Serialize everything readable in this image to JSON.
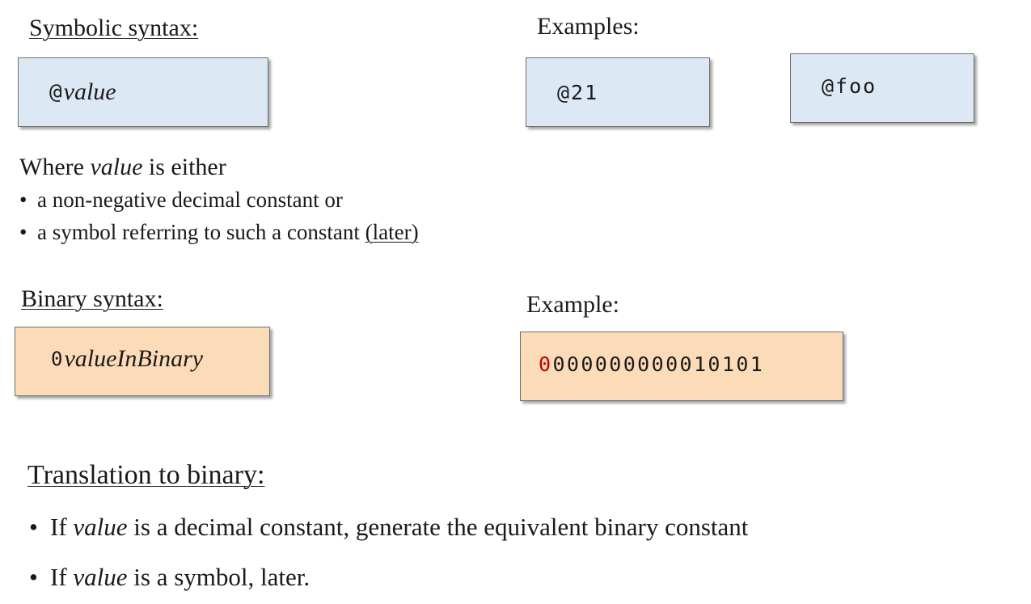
{
  "symbolic": {
    "heading": "Symbolic syntax:",
    "box_prefix": "@",
    "box_var": "value"
  },
  "examples": {
    "heading": "Examples:",
    "ex1": "@21",
    "ex2": "@foo"
  },
  "where": {
    "lead_pre": "Where ",
    "lead_var": "value",
    "lead_post": " is either",
    "bullet1": "a non-negative decimal constant or",
    "bullet2_pre": "a symbol referring to such a constant ",
    "bullet2_link": "(later)"
  },
  "binary": {
    "heading": "Binary syntax:",
    "box_prefix": "0",
    "box_var": "valueInBinary"
  },
  "binary_example": {
    "heading": "Example:",
    "first_bit": "0",
    "rest_bits": "000000000010101",
    "first_bit_color": "#c00000"
  },
  "translation": {
    "heading": "Translation to binary:",
    "b1_pre": "If ",
    "b1_var": "value",
    "b1_post": " is a decimal constant, generate the equivalent binary constant",
    "b2_pre": "If ",
    "b2_var": "value",
    "b2_post": " is a symbol, later."
  },
  "bullet_char": "•"
}
